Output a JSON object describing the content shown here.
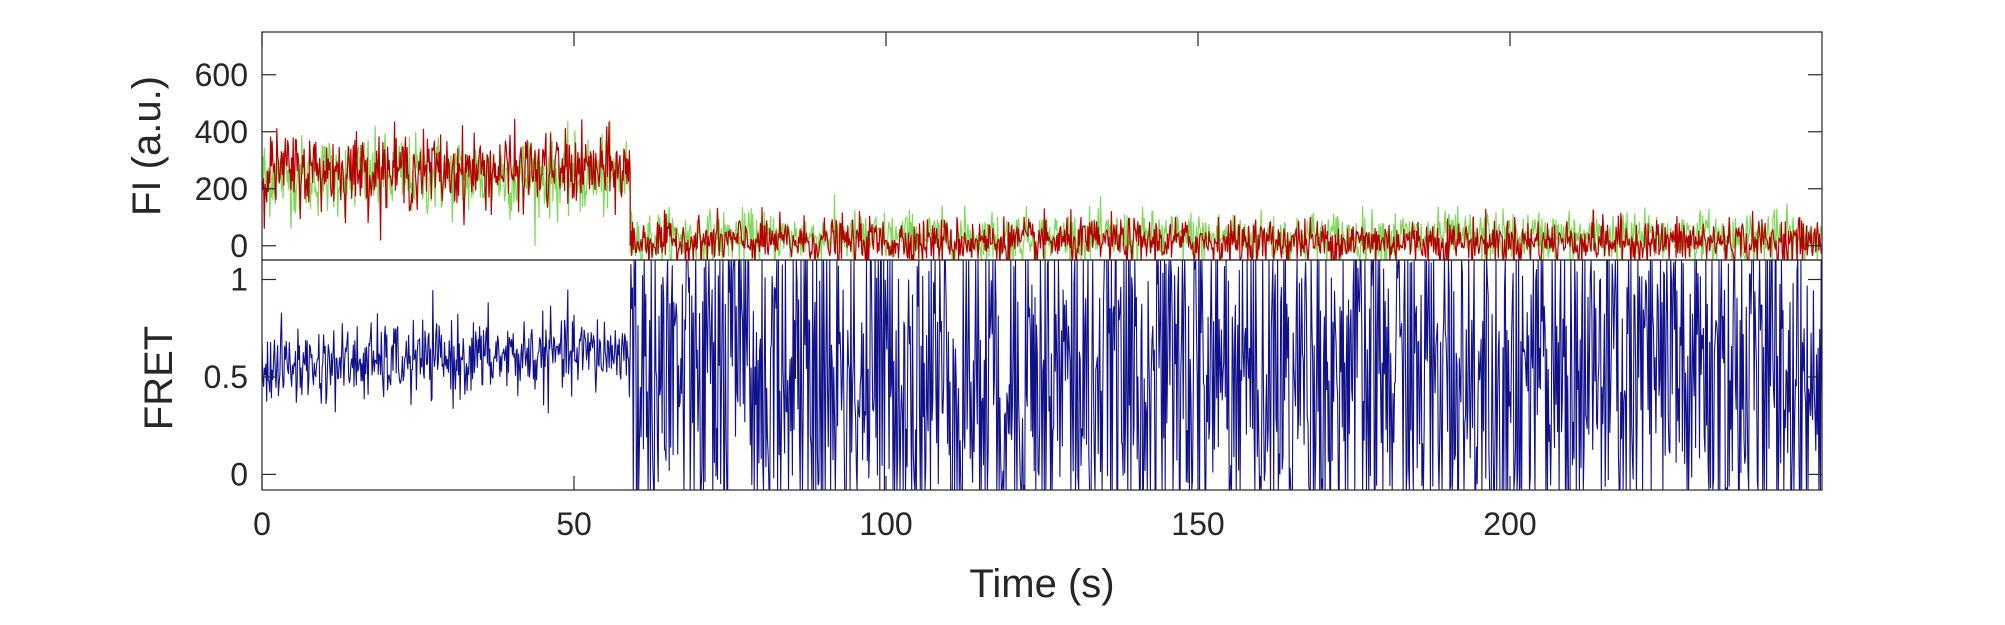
{
  "chart_data": [
    {
      "type": "line",
      "panel": "top",
      "ylabel": "FI (a.u.)",
      "xlim": [
        0,
        250
      ],
      "ylim": [
        -50,
        750
      ],
      "yticks": [
        0,
        200,
        400,
        600
      ],
      "yticklabels": [
        "0",
        "200",
        "400",
        "600"
      ],
      "grid": false,
      "series": [
        {
          "color": "#7ed957",
          "segments": [
            {
              "x_start": 0,
              "x_end": 59,
              "mean": 245,
              "noise": 70
            },
            {
              "x_start": 59,
              "x_end": 250,
              "mean": 30,
              "noise": 45
            }
          ]
        },
        {
          "color": "#b50000",
          "segments": [
            {
              "x_start": 0,
              "x_end": 59,
              "mean": 265,
              "noise": 65
            },
            {
              "x_start": 59,
              "x_end": 250,
              "mean": 15,
              "noise": 40
            }
          ]
        }
      ]
    },
    {
      "type": "line",
      "panel": "bottom",
      "ylabel": "FRET",
      "xlabel": "Time (s)",
      "xlim": [
        0,
        250
      ],
      "ylim": [
        -0.08,
        1.1
      ],
      "yticks": [
        0,
        0.5,
        1
      ],
      "yticklabels": [
        "0",
        "0.5",
        "1"
      ],
      "xticks": [
        0,
        50,
        100,
        150,
        200
      ],
      "xticklabels": [
        "0",
        "50",
        "100",
        "150",
        "200"
      ],
      "grid": false,
      "series": [
        {
          "color": "#10108a",
          "segments": [
            {
              "x_start": 0,
              "x_end": 59,
              "mean": 0.55,
              "noise": 0.1,
              "drift": 0.08
            },
            {
              "x_start": 59,
              "x_end": 250,
              "mean": 0.5,
              "noise": 0.55
            }
          ]
        }
      ]
    }
  ]
}
